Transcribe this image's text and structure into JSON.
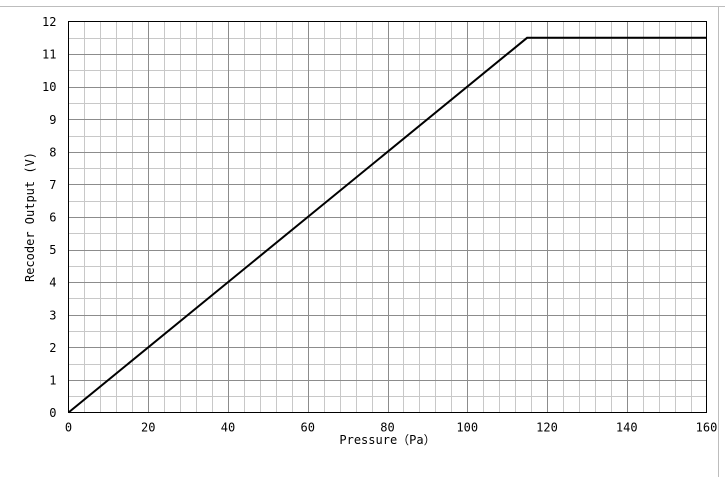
{
  "chart_data": {
    "type": "line",
    "title": "",
    "xlabel": "Pressure（Pa）",
    "ylabel": "Recoder Output (V)",
    "xlim": [
      0,
      160
    ],
    "ylim": [
      0,
      12
    ],
    "xticks": [
      0,
      20,
      40,
      60,
      80,
      100,
      120,
      140,
      160
    ],
    "yticks": [
      0,
      1,
      2,
      3,
      4,
      5,
      6,
      7,
      8,
      9,
      10,
      11,
      12
    ],
    "x_minor_step": 4,
    "y_minor_step": 0.5,
    "grid": true,
    "legend": "none",
    "series": [
      {
        "x": [
          0,
          115,
          160
        ],
        "y": [
          0,
          11.5,
          11.5
        ],
        "color": "#000000"
      }
    ]
  }
}
